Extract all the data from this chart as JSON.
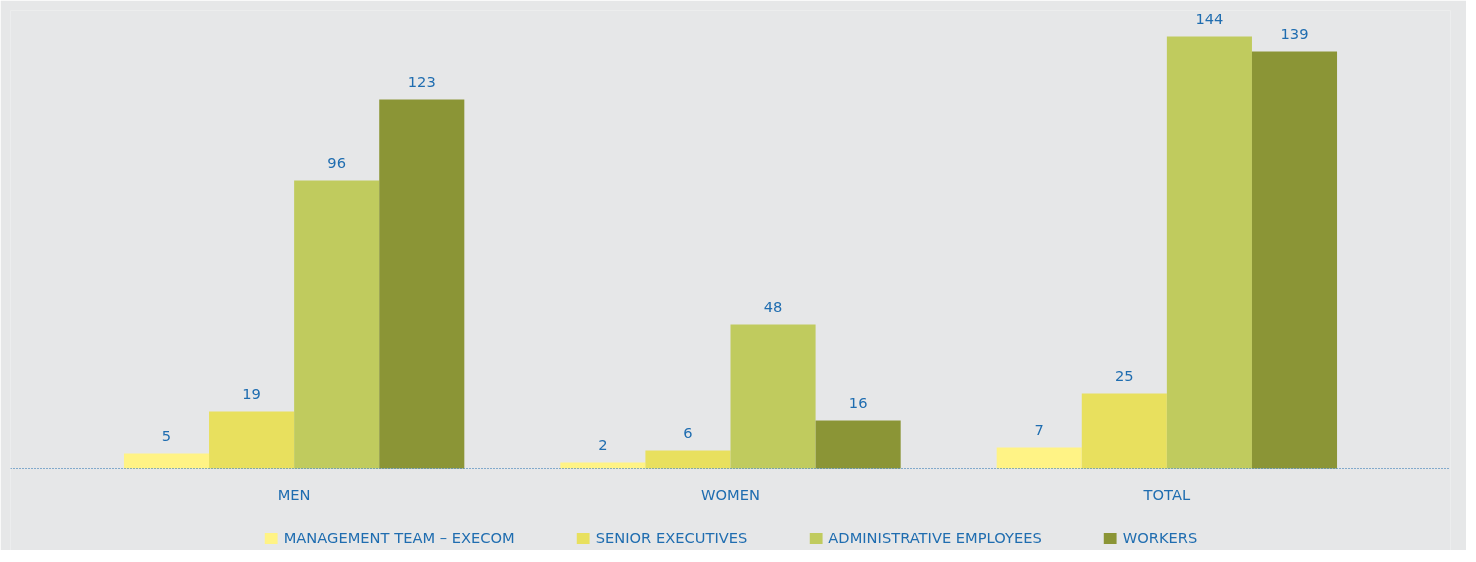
{
  "chart_data": {
    "type": "bar",
    "categories": [
      "MEN",
      "WOMEN",
      "TOTAL"
    ],
    "series": [
      {
        "name": "MANAGEMENT TEAM – EXECOM",
        "color": "#fff385",
        "values": [
          5,
          2,
          7
        ]
      },
      {
        "name": "SENIOR EXECUTIVES",
        "color": "#e8e05e",
        "values": [
          19,
          6,
          25
        ]
      },
      {
        "name": "ADMINISTRATIVE EMPLOYEES",
        "color": "#c0cb5e",
        "values": [
          96,
          48,
          144
        ]
      },
      {
        "name": "WORKERS",
        "color": "#8b9536",
        "values": [
          123,
          16,
          139
        ]
      }
    ],
    "data_labels": true,
    "legend": "bottom"
  }
}
